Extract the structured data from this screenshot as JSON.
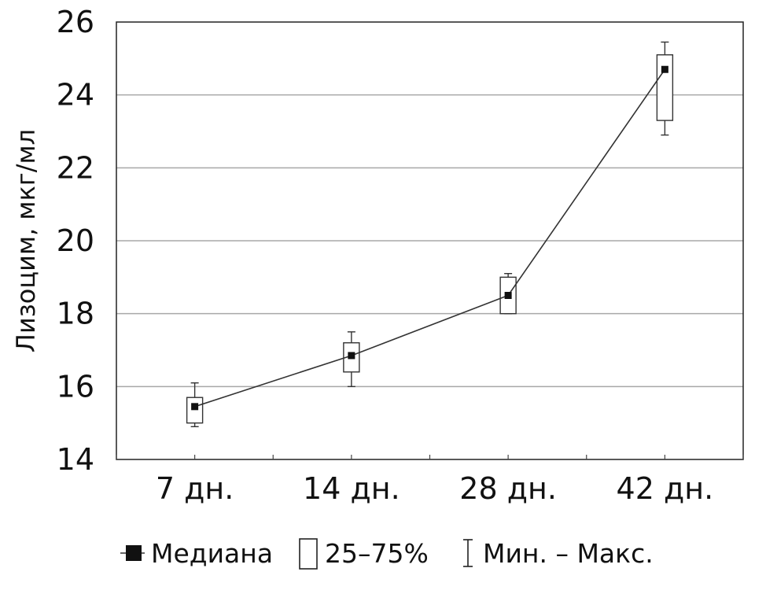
{
  "chart_data": {
    "type": "box",
    "ylabel": "Лизоцим, мкг/мл",
    "xlabel": "",
    "categories": [
      "7 дн.",
      "14 дн.",
      "28 дн.",
      "42 дн."
    ],
    "ylim": [
      14,
      26
    ],
    "yticks": [
      14,
      16,
      18,
      20,
      22,
      24,
      26
    ],
    "grid": "horizontal",
    "legend_position": "bottom",
    "series": [
      {
        "name": "Медиана",
        "role": "median",
        "values": [
          15.45,
          16.85,
          18.5,
          24.7
        ]
      },
      {
        "name": "25–75%",
        "role": "interquartile",
        "q1": [
          15.0,
          16.4,
          18.0,
          23.3
        ],
        "q3": [
          15.7,
          17.2,
          19.0,
          25.1
        ]
      },
      {
        "name": "Мин. – Макс.",
        "role": "range",
        "min": [
          14.9,
          16.0,
          18.0,
          22.9
        ],
        "max": [
          16.1,
          17.5,
          19.1,
          25.45
        ]
      }
    ],
    "colors": {
      "median": "#111111",
      "box_fill": "#ffffff",
      "line": "#333333",
      "grid": "#a8a8a8"
    }
  }
}
